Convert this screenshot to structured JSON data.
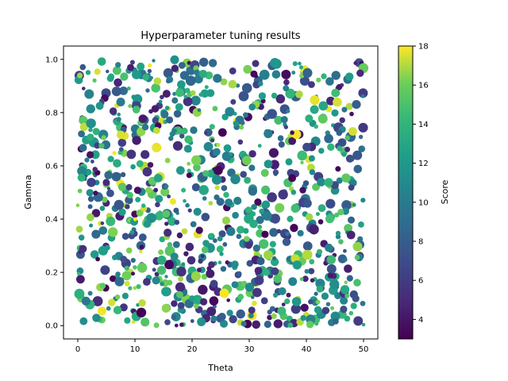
{
  "chart_data": {
    "type": "scatter",
    "title": "Hyperparameter tuning results",
    "xlabel": "Theta",
    "ylabel": "Gamma",
    "xlim": [
      -2.5,
      52.5
    ],
    "ylim": [
      -0.05,
      1.05
    ],
    "xticks": [
      "0",
      "10",
      "20",
      "30",
      "40",
      "50"
    ],
    "yticks": [
      "0.0",
      "0.2",
      "0.4",
      "0.6",
      "0.8",
      "1.0"
    ],
    "colorbar": {
      "label": "Score",
      "min": 3,
      "max": 18,
      "ticks": [
        "4",
        "6",
        "8",
        "10",
        "12",
        "14",
        "16",
        "18"
      ],
      "colormap": "viridis"
    },
    "grid": false,
    "n_points": 1000,
    "x_range": [
      0,
      50
    ],
    "y_range": [
      0,
      1
    ],
    "score_range": [
      3,
      18
    ],
    "marker_size_varies": true
  }
}
